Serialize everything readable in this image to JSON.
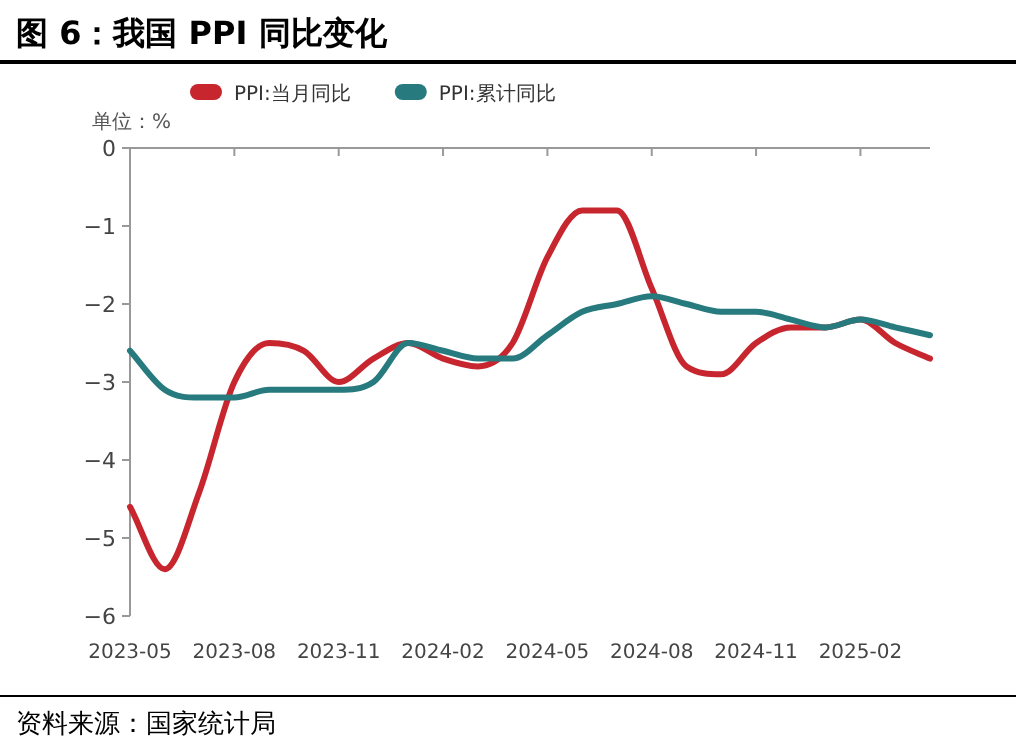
{
  "chart_data": {
    "type": "line",
    "title": "图 6：我国 PPI 同比变化",
    "ylabel": "单位：%",
    "annotations": [
      "资料来源：国家统计局"
    ],
    "x": [
      "2023-05",
      "2023-06",
      "2023-07",
      "2023-08",
      "2023-09",
      "2023-10",
      "2023-11",
      "2023-12",
      "2024-01",
      "2024-02",
      "2024-03",
      "2024-04",
      "2024-05",
      "2024-06",
      "2024-07",
      "2024-08",
      "2024-09",
      "2024-10",
      "2024-11",
      "2024-12",
      "2025-01",
      "2025-02",
      "2025-03",
      "2025-04"
    ],
    "series": [
      {
        "name": "PPI:当月同比",
        "color": "#c8262f",
        "values": [
          -4.6,
          -5.4,
          -4.4,
          -3.0,
          -2.5,
          -2.6,
          -3.0,
          -2.7,
          -2.5,
          -2.7,
          -2.8,
          -2.5,
          -1.4,
          -0.8,
          -0.8,
          -1.8,
          -2.8,
          -2.9,
          -2.5,
          -2.3,
          -2.3,
          -2.2,
          -2.5,
          -2.7
        ]
      },
      {
        "name": "PPI:累计同比",
        "color": "#277a7e",
        "values": [
          -2.6,
          -3.1,
          -3.2,
          -3.2,
          -3.1,
          -3.1,
          -3.1,
          -3.0,
          -2.5,
          -2.6,
          -2.7,
          -2.7,
          -2.4,
          -2.1,
          -2.0,
          -1.9,
          -2.0,
          -2.1,
          -2.1,
          -2.2,
          -2.3,
          -2.2,
          -2.3,
          -2.4
        ]
      }
    ],
    "xlim": [
      "2023-05",
      "2025-04"
    ],
    "xticks": [
      {
        "value": "2023-05",
        "label": "2023-05"
      },
      {
        "value": "2023-08",
        "label": "2023-08"
      },
      {
        "value": "2023-11",
        "label": "2023-11"
      },
      {
        "value": "2024-02",
        "label": "2024-02"
      },
      {
        "value": "2024-05",
        "label": "2024-05"
      },
      {
        "value": "2024-08",
        "label": "2024-08"
      },
      {
        "value": "2024-11",
        "label": "2024-11"
      },
      {
        "value": "2025-02",
        "label": "2025-02"
      }
    ],
    "ylim": [
      -6,
      0
    ],
    "yticks": [
      0,
      -1,
      -2,
      -3,
      -4,
      -5,
      -6
    ],
    "legend": "top",
    "grid": false,
    "marker": "none",
    "line_style": "solid"
  }
}
